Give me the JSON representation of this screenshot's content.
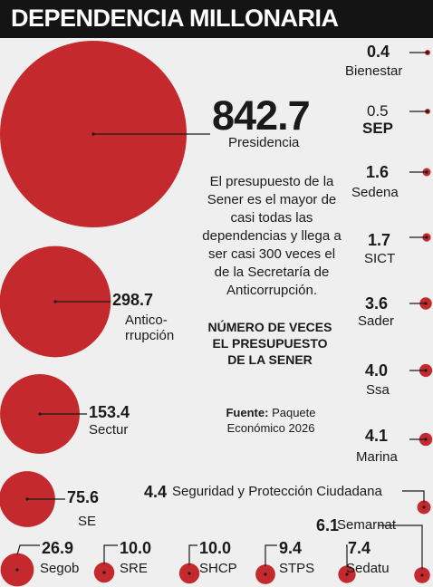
{
  "header": {
    "title": "DEPENDENCIA MILLONARIA"
  },
  "colors": {
    "bubble": "#c42a2d",
    "line": "#1a1a1a",
    "header_bg": "#141414"
  },
  "text": {
    "description": "El presupuesto de la Sener es el mayor de casi todas las dependencias y llega a ser casi 300 veces el de la Secretaría de Anticorrupción.",
    "heading": "NÚMERO DE VECES EL PRESUPUESTO DE LA SENER",
    "source_label": "Fuente:",
    "source_text": "Paquete Económico 2026"
  },
  "chart_data": {
    "type": "bubble",
    "title": "DEPENDENCIA MILLONARIA",
    "unit": "número de veces el presupuesto de la Sener",
    "categories": [
      "Presidencia",
      "Anticorrupción",
      "Sectur",
      "SE",
      "Segob",
      "SRE",
      "SHCP",
      "STPS",
      "Sedatu",
      "Semarnat",
      "Seguridad y Protección Ciudadana",
      "Marina",
      "Ssa",
      "Sader",
      "SICT",
      "Sedena",
      "SEP",
      "Bienestar"
    ],
    "values": [
      842.7,
      298.7,
      153.4,
      75.6,
      26.9,
      10.0,
      10.0,
      9.4,
      7.4,
      6.1,
      4.4,
      4.1,
      4.0,
      3.6,
      1.7,
      1.6,
      0.5,
      0.4
    ],
    "items": [
      {
        "name": "Presidencia",
        "label": "Presidencia",
        "value": 842.7,
        "display": "842.7"
      },
      {
        "name": "Anticorrupción",
        "label": "Antico-\nrrupción",
        "value": 298.7,
        "display": "298.7"
      },
      {
        "name": "Sectur",
        "label": "Sectur",
        "value": 153.4,
        "display": "153.4"
      },
      {
        "name": "SE",
        "label": "SE",
        "value": 75.6,
        "display": "75.6"
      },
      {
        "name": "Segob",
        "label": "Segob",
        "value": 26.9,
        "display": "26.9"
      },
      {
        "name": "SRE",
        "label": "SRE",
        "value": 10.0,
        "display": "10.0"
      },
      {
        "name": "SHCP",
        "label": "SHCP",
        "value": 10.0,
        "display": "10.0"
      },
      {
        "name": "STPS",
        "label": "STPS",
        "value": 9.4,
        "display": "9.4"
      },
      {
        "name": "Sedatu",
        "label": "Sedatu",
        "value": 7.4,
        "display": "7.4"
      },
      {
        "name": "Semarnat",
        "label": "Semarnat",
        "value": 6.1,
        "display": "6.1"
      },
      {
        "name": "Seguridad y Protección Ciudadana",
        "label": "Seguridad y Protección Ciudadana",
        "value": 4.4,
        "display": "4.4"
      },
      {
        "name": "Marina",
        "label": "Marina",
        "value": 4.1,
        "display": "4.1"
      },
      {
        "name": "Ssa",
        "label": "Ssa",
        "value": 4.0,
        "display": "4.0"
      },
      {
        "name": "Sader",
        "label": "Sader",
        "value": 3.6,
        "display": "3.6"
      },
      {
        "name": "SICT",
        "label": "SICT",
        "value": 1.7,
        "display": "1.7"
      },
      {
        "name": "Sedena",
        "label": "Sedena",
        "value": 1.6,
        "display": "1.6"
      },
      {
        "name": "SEP",
        "label": "SEP",
        "value": 0.5,
        "display": "0.5"
      },
      {
        "name": "Bienestar",
        "label": "Bienestar",
        "value": 0.4,
        "display": "0.4"
      }
    ]
  }
}
